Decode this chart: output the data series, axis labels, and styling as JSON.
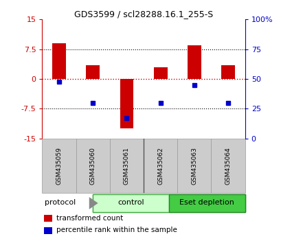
{
  "title": "GDS3599 / scl28288.16.1_255-S",
  "samples": [
    "GSM435059",
    "GSM435060",
    "GSM435061",
    "GSM435062",
    "GSM435063",
    "GSM435064"
  ],
  "transformed_counts": [
    9.0,
    3.5,
    -12.5,
    3.0,
    8.5,
    3.5
  ],
  "percentile_ranks": [
    48,
    30,
    17,
    30,
    45,
    30
  ],
  "ylim_left": [
    -15,
    15
  ],
  "ylim_right": [
    0,
    100
  ],
  "yticks_left": [
    -15,
    -7.5,
    0,
    7.5,
    15
  ],
  "ytick_labels_left": [
    "-15",
    "-7.5",
    "0",
    "7.5",
    "15"
  ],
  "yticks_right": [
    0,
    25,
    50,
    75,
    100
  ],
  "ytick_labels_right": [
    "0",
    "25",
    "50",
    "75",
    "100%"
  ],
  "bar_color": "#cc0000",
  "dot_color": "#0000cc",
  "bar_width": 0.4,
  "groups": [
    {
      "label": "control",
      "samples": [
        0,
        1,
        2
      ],
      "color": "#ccffcc",
      "edge_color": "#44aa44"
    },
    {
      "label": "Eset depletion",
      "samples": [
        3,
        4,
        5
      ],
      "color": "#44cc44",
      "edge_color": "#228822"
    }
  ],
  "protocol_label": "protocol",
  "legend_items": [
    {
      "label": "transformed count",
      "color": "#cc0000"
    },
    {
      "label": "percentile rank within the sample",
      "color": "#0000cc"
    }
  ],
  "background_color": "#ffffff",
  "sample_box_color": "#cccccc",
  "fig_width": 4.1,
  "fig_height": 3.54
}
